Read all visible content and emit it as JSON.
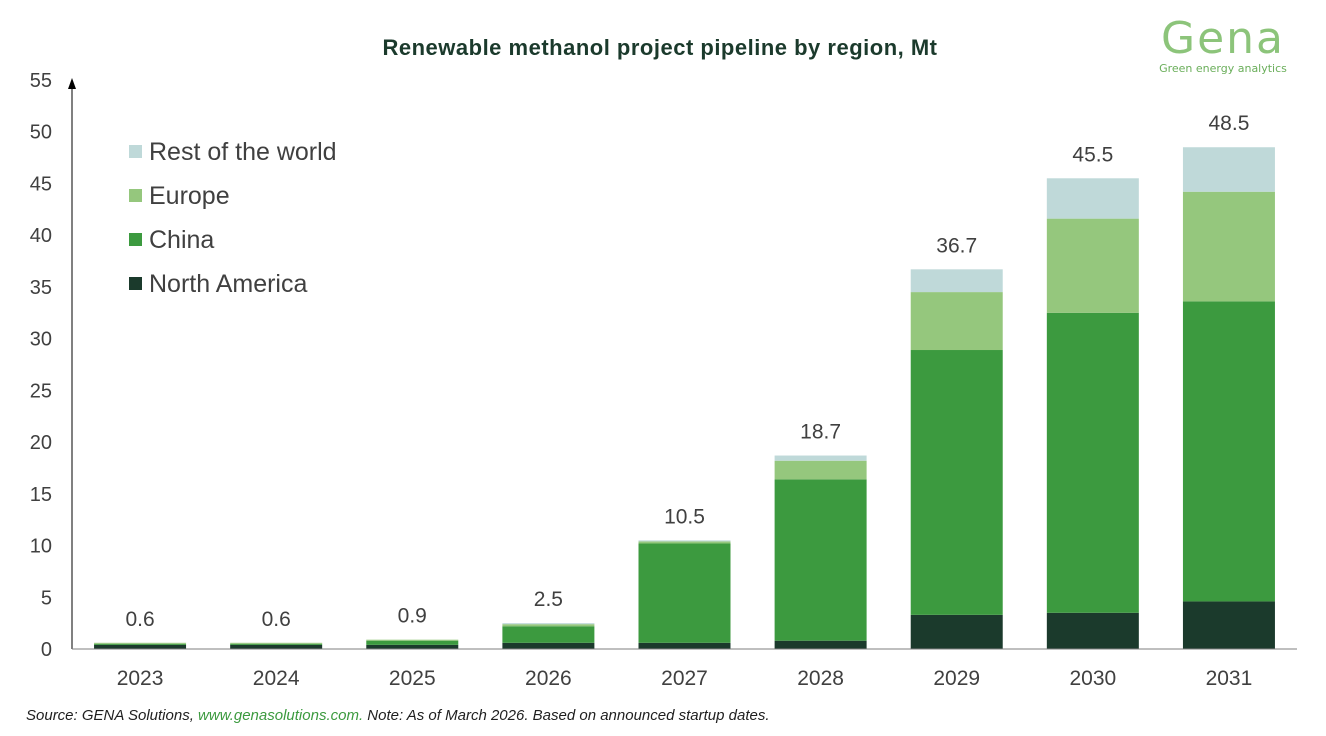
{
  "chart_data": {
    "type": "bar",
    "stacked": true,
    "title": "Renewable methanol project pipeline by region, Mt",
    "xlabel": "",
    "ylabel": "",
    "categories": [
      "2023",
      "2024",
      "2025",
      "2026",
      "2027",
      "2028",
      "2029",
      "2030",
      "2031"
    ],
    "ylim": [
      0,
      55
    ],
    "yticks": [
      0,
      5,
      10,
      15,
      20,
      25,
      30,
      35,
      40,
      45,
      50,
      55
    ],
    "grid": false,
    "legend_position": "top-left",
    "series": [
      {
        "name": "North America",
        "color": "#1b3a2c",
        "values": [
          0.4,
          0.4,
          0.4,
          0.6,
          0.6,
          0.8,
          3.3,
          3.5,
          4.6
        ]
      },
      {
        "name": "China",
        "color": "#3c9a3f",
        "values": [
          0.1,
          0.1,
          0.4,
          1.6,
          9.6,
          15.6,
          25.6,
          29.0,
          29.0
        ]
      },
      {
        "name": "Europe",
        "color": "#95c77d",
        "values": [
          0.1,
          0.1,
          0.1,
          0.2,
          0.2,
          1.8,
          5.6,
          9.1,
          10.6
        ]
      },
      {
        "name": "Rest of the world",
        "color": "#bfd9d9",
        "values": [
          0.0,
          0.0,
          0.0,
          0.1,
          0.1,
          0.5,
          2.2,
          3.9,
          4.3
        ]
      }
    ],
    "totals": [
      "0.6",
      "0.6",
      "0.9",
      "2.5",
      "10.5",
      "18.7",
      "36.7",
      "45.5",
      "48.5"
    ]
  },
  "logo": {
    "word": "Gena",
    "tagline": "Green energy analytics"
  },
  "source": {
    "prefix": "Source: GENA Solutions, ",
    "link": "www.genasolutions.com.",
    "suffix": " Note: As of March 2026. Based on announced startup dates."
  }
}
